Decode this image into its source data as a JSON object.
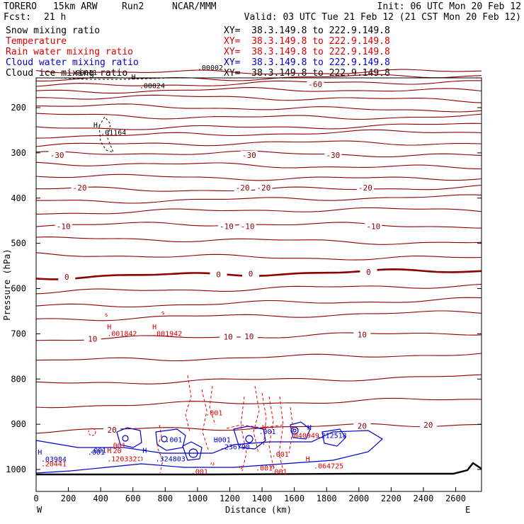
{
  "header": {
    "model": "TORERO",
    "resolution": "15km ARW",
    "run": "Run2",
    "org": "NCAR/MMM",
    "init": "Init: 06 UTC Mon 20 Feb 12",
    "fcst_label": "Fcst:",
    "fcst_value": "21 h",
    "valid": "Valid: 03 UTC Tue 21 Feb 12 (21 CST Mon 20 Feb 12)"
  },
  "legend": {
    "items": [
      {
        "label": "Snow mixing ratio",
        "color": "#000000",
        "xy": "XY=  38.3.149.8 to 222.9.149.8",
        "xy_color": "#000000"
      },
      {
        "label": "Temperature",
        "color": "#dd0000",
        "xy": "XY=  38.3.149.8 to 222.9.149.8",
        "xy_color": "#dd0000"
      },
      {
        "label": "Rain water mixing ratio",
        "color": "#dd0000",
        "xy": "XY=  38.3.149.8 to 222.9.149.8",
        "xy_color": "#dd0000"
      },
      {
        "label": "Cloud water mixing ratio",
        "color": "#0000cc",
        "xy": "XY=  38.3.149.8 to 222.9.149.8",
        "xy_color": "#0000cc"
      },
      {
        "label": "Cloud ice mixing ratio",
        "color": "#000000",
        "xy": "XY=  38.3.149.8 to 222.9.149.8",
        "xy_color": "#000000"
      }
    ]
  },
  "colors": {
    "temperature": "#8b0000",
    "rain": "#ee0000",
    "cloud_water": "#0000cc",
    "ice_snow": "#000000"
  },
  "chart_data": {
    "type": "cross-section contour",
    "xlabel": "Distance (km)",
    "ylabel": "Pressure (hPa)",
    "x_ticks": [
      0,
      200,
      400,
      600,
      800,
      1000,
      1200,
      1400,
      1600,
      1800,
      2000,
      2200,
      2400,
      2600
    ],
    "y_ticks": [
      200,
      300,
      400,
      500,
      600,
      700,
      800,
      900,
      1000
    ],
    "xlim": [
      0,
      2760
    ],
    "ylim_hpa": [
      1050,
      100
    ],
    "left_end": "W",
    "right_end": "E",
    "temperature_isotherms": [
      {
        "p": 118
      },
      {
        "p": 132
      },
      {
        "p": 148,
        "label": "-60",
        "label_x": 1730
      },
      {
        "p": 165
      },
      {
        "p": 181
      },
      {
        "p": 200
      },
      {
        "p": 217
      },
      {
        "p": 240
      },
      {
        "p": 258
      },
      {
        "p": 282
      },
      {
        "p": 305,
        "labels": [
          {
            "x": 130,
            "text": "-30"
          },
          {
            "x": 1320,
            "text": "-30"
          },
          {
            "x": 1840,
            "text": "-30"
          }
        ]
      },
      {
        "p": 328
      },
      {
        "p": 352
      },
      {
        "p": 377,
        "labels": [
          {
            "x": 270,
            "text": "-20"
          },
          {
            "x": 1280,
            "text": "-20"
          },
          {
            "x": 1410,
            "text": "-20"
          },
          {
            "x": 2040,
            "text": "-20"
          }
        ]
      },
      {
        "p": 402
      },
      {
        "p": 430
      },
      {
        "p": 462,
        "labels": [
          {
            "x": 170,
            "text": "-10"
          },
          {
            "x": 1180,
            "text": "-10"
          },
          {
            "x": 1310,
            "text": "-10"
          },
          {
            "x": 2090,
            "text": "-10"
          }
        ]
      },
      {
        "p": 495
      },
      {
        "p": 528
      },
      {
        "p": 575,
        "bold": true,
        "labels": [
          {
            "x": 190,
            "text": "0"
          },
          {
            "x": 1130,
            "text": "0"
          },
          {
            "x": 1330,
            "text": "0"
          },
          {
            "x": 2060,
            "text": "0"
          }
        ]
      },
      {
        "p": 608
      },
      {
        "p": 640
      },
      {
        "p": 668
      },
      {
        "p": 713,
        "labels": [
          {
            "x": 350,
            "text": "10"
          },
          {
            "x": 1190,
            "text": "10"
          },
          {
            "x": 1320,
            "text": "10"
          },
          {
            "x": 2020,
            "text": "10"
          }
        ]
      },
      {
        "p": 760
      },
      {
        "p": 810
      },
      {
        "p": 860
      },
      {
        "p": 915,
        "labels": [
          {
            "x": 470,
            "text": "20"
          },
          {
            "x": 2020,
            "text": "20"
          },
          {
            "x": 2430,
            "text": "20"
          }
        ]
      }
    ],
    "annotations": [
      {
        "text": "H",
        "x": 440,
        "p": 690,
        "color": "red"
      },
      {
        "text": ".001842",
        "x": 440,
        "p": 705,
        "color": "red"
      },
      {
        "text": "H",
        "x": 720,
        "p": 690,
        "color": "red"
      },
      {
        "text": ".001942",
        "x": 720,
        "p": 705,
        "color": "red"
      },
      {
        "text": "H",
        "x": 355,
        "p": 244,
        "color": "black"
      },
      {
        "text": ".01164",
        "x": 400,
        "p": 260,
        "color": "black"
      },
      {
        "text": "H",
        "x": 590,
        "p": 137,
        "color": "black"
      },
      {
        "text": ".00024",
        "x": 640,
        "p": 157,
        "color": "black"
      },
      {
        "text": ".00002",
        "x": 1000,
        "p": 117,
        "color": "black"
      },
      {
        "text": ".00011",
        "x": 220,
        "p": 128,
        "color": "black"
      },
      {
        "text": ".001",
        "x": 1050,
        "p": 880,
        "color": "red"
      },
      {
        "text": ".001",
        "x": 1360,
        "p": 1002,
        "color": "red"
      },
      {
        "text": ".001",
        "x": 960,
        "p": 1010,
        "color": "red"
      },
      {
        "text": ".001",
        "x": 1460,
        "p": 972,
        "color": "red"
      },
      {
        "text": ".001",
        "x": 1450,
        "p": 1010,
        "color": "red"
      },
      {
        "text": "H",
        "x": 1400,
        "p": 912,
        "color": "red"
      },
      {
        "text": "H",
        "x": 1680,
        "p": 912,
        "color": "blue"
      },
      {
        "text": ".040949",
        "x": 1570,
        "p": 930,
        "color": "red"
      },
      {
        "text": ".212518",
        "x": 1740,
        "p": 930,
        "color": "blue"
      },
      {
        "text": ".001",
        "x": 1380,
        "p": 922,
        "color": "blue"
      },
      {
        "text": ".001",
        "x": 800,
        "p": 940,
        "color": "blue"
      },
      {
        "text": ".001",
        "x": 1100,
        "p": 940,
        "color": "blue"
      },
      {
        "text": "H",
        "x": 1100,
        "p": 940,
        "color": "blue"
      },
      {
        "text": ".236790",
        "x": 1140,
        "p": 955,
        "color": "blue"
      },
      {
        "text": "H",
        "x": 660,
        "p": 963,
        "color": "blue"
      },
      {
        "text": ".324803",
        "x": 740,
        "p": 982,
        "color": "blue"
      },
      {
        "text": "H",
        "x": 440,
        "p": 963,
        "color": "red"
      },
      {
        "text": ".120332",
        "x": 440,
        "p": 982,
        "color": "red"
      },
      {
        "text": "H",
        "x": 1670,
        "p": 982,
        "color": "red"
      },
      {
        "text": ".064725",
        "x": 1720,
        "p": 998,
        "color": "red"
      },
      {
        "text": ".001",
        "x": 330,
        "p": 963,
        "color": "blue"
      },
      {
        "text": ".001",
        "x": 450,
        "p": 952,
        "color": "red"
      },
      {
        "text": ".20",
        "x": 450,
        "p": 964,
        "color": "red"
      },
      {
        "text": "H",
        "x": 10,
        "p": 967,
        "color": "blue"
      },
      {
        "text": ".03984",
        "x": 30,
        "p": 983,
        "color": "blue"
      },
      {
        "text": ".20441",
        "x": 30,
        "p": 993,
        "color": "red"
      },
      {
        "text": ".001",
        "x": 320,
        "p": 967,
        "color": "blue"
      }
    ]
  }
}
